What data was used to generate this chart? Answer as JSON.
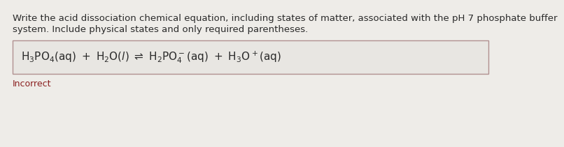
{
  "question_line1": "Write the acid dissociation chemical equation, including states of matter, associated with the pH 7 phosphate buffer",
  "question_line2": "system. Include physical states and only required parentheses.",
  "feedback": "Incorrect",
  "bg_color": "#eeece8",
  "box_bg_color": "#e8e6e2",
  "box_border_color": "#b09090",
  "text_color": "#2a2a2a",
  "feedback_color": "#8b2020",
  "question_fontsize": 9.5,
  "equation_fontsize": 11,
  "feedback_fontsize": 9
}
